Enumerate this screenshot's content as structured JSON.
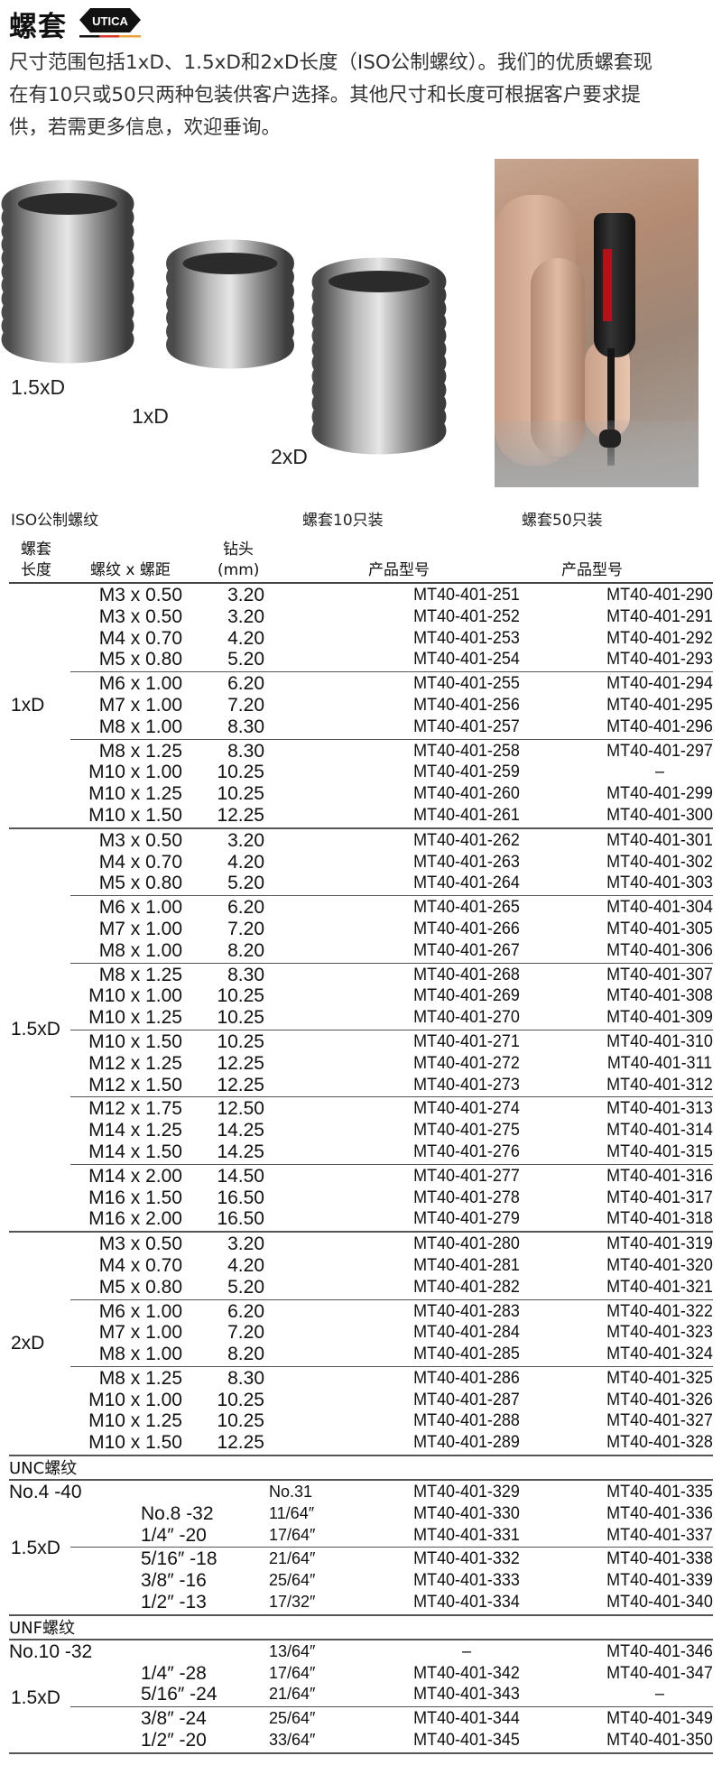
{
  "header": {
    "title": "螺套",
    "logo_text": "UTICA",
    "logo_colors": [
      "#111111",
      "#d9342b",
      "#e8a33a"
    ]
  },
  "intro": "尺寸范围包括1xD、1.5xD和2xD长度（ISO公制螺纹）。我们的优质螺套现在有10只或50只两种包装供客户选择。其他尺寸和长度可根据客户要求提供，若需更多信息，欢迎垂询。",
  "images": {
    "label_15xd": "1.5xD",
    "label_1xd": "1xD",
    "label_2xd": "2xD"
  },
  "captions": {
    "iso": "ISO公制螺纹",
    "pack10": "螺套10只装",
    "pack50": "螺套50只装"
  },
  "table": {
    "headers": {
      "length_l1": "螺套",
      "length_l2": "长度",
      "thread": "螺纹 x 螺距",
      "drill_l1": "钻头",
      "drill_l2": "(mm)",
      "part10": "产品型号",
      "part50": "产品型号"
    },
    "metric": [
      {
        "label": "1xD",
        "groups": [
          [
            [
              "M3 x 0.50",
              "3.20",
              "MT40-401-251",
              "MT40-401-290"
            ],
            [
              "M3 x 0.50",
              "3.20",
              "MT40-401-252",
              "MT40-401-291"
            ],
            [
              "M4 x 0.70",
              "4.20",
              "MT40-401-253",
              "MT40-401-292"
            ],
            [
              "M5 x 0.80",
              "5.20",
              "MT40-401-254",
              "MT40-401-293"
            ]
          ],
          [
            [
              "M6 x 1.00",
              "6.20",
              "MT40-401-255",
              "MT40-401-294"
            ],
            [
              "M7 x 1.00",
              "7.20",
              "MT40-401-256",
              "MT40-401-295"
            ],
            [
              "M8 x 1.00",
              "8.30",
              "MT40-401-257",
              "MT40-401-296"
            ]
          ],
          [
            [
              "M8 x 1.25",
              "8.30",
              "MT40-401-258",
              "MT40-401-297"
            ],
            [
              "M10 x 1.00",
              "10.25",
              "MT40-401-259",
              "–"
            ],
            [
              "M10 x 1.25",
              "10.25",
              "MT40-401-260",
              "MT40-401-299"
            ],
            [
              "M10 x 1.50",
              "12.25",
              "MT40-401-261",
              "MT40-401-300"
            ]
          ]
        ]
      },
      {
        "label": "1.5xD",
        "groups": [
          [
            [
              "M3 x 0.50",
              "3.20",
              "MT40-401-262",
              "MT40-401-301"
            ],
            [
              "M4 x 0.70",
              "4.20",
              "MT40-401-263",
              "MT40-401-302"
            ],
            [
              "M5 x 0.80",
              "5.20",
              "MT40-401-264",
              "MT40-401-303"
            ]
          ],
          [
            [
              "M6 x 1.00",
              "6.20",
              "MT40-401-265",
              "MT40-401-304"
            ],
            [
              "M7 x 1.00",
              "7.20",
              "MT40-401-266",
              "MT40-401-305"
            ],
            [
              "M8 x 1.00",
              "8.20",
              "MT40-401-267",
              "MT40-401-306"
            ]
          ],
          [
            [
              "M8 x 1.25",
              "8.30",
              "MT40-401-268",
              "MT40-401-307"
            ],
            [
              "M10 x 1.00",
              "10.25",
              "MT40-401-269",
              "MT40-401-308"
            ],
            [
              "M10 x 1.25",
              "10.25",
              "MT40-401-270",
              "MT40-401-309"
            ]
          ],
          [
            [
              "M10 x 1.50",
              "10.25",
              "MT40-401-271",
              "MT40-401-310"
            ],
            [
              "M12 x 1.25",
              "12.25",
              "MT40-401-272",
              "MT40-401-311"
            ],
            [
              "M12 x 1.50",
              "12.25",
              "MT40-401-273",
              "MT40-401-312"
            ]
          ],
          [
            [
              "M12 x 1.75",
              "12.50",
              "MT40-401-274",
              "MT40-401-313"
            ],
            [
              "M14 x 1.25",
              "14.25",
              "MT40-401-275",
              "MT40-401-314"
            ],
            [
              "M14 x 1.50",
              "14.25",
              "MT40-401-276",
              "MT40-401-315"
            ]
          ],
          [
            [
              "M14 x 2.00",
              "14.50",
              "MT40-401-277",
              "MT40-401-316"
            ],
            [
              "M16 x 1.50",
              "16.50",
              "MT40-401-278",
              "MT40-401-317"
            ],
            [
              "M16 x 2.00",
              "16.50",
              "MT40-401-279",
              "MT40-401-318"
            ]
          ]
        ]
      },
      {
        "label": "2xD",
        "groups": [
          [
            [
              "M3 x 0.50",
              "3.20",
              "MT40-401-280",
              "MT40-401-319"
            ],
            [
              "M4 x 0.70",
              "4.20",
              "MT40-401-281",
              "MT40-401-320"
            ],
            [
              "M5 x 0.80",
              "5.20",
              "MT40-401-282",
              "MT40-401-321"
            ]
          ],
          [
            [
              "M6 x 1.00",
              "6.20",
              "MT40-401-283",
              "MT40-401-322"
            ],
            [
              "M7 x 1.00",
              "7.20",
              "MT40-401-284",
              "MT40-401-323"
            ],
            [
              "M8 x 1.00",
              "8.20",
              "MT40-401-285",
              "MT40-401-324"
            ]
          ],
          [
            [
              "M8 x 1.25",
              "8.30",
              "MT40-401-286",
              "MT40-401-325"
            ],
            [
              "M10 x 1.00",
              "10.25",
              "MT40-401-287",
              "MT40-401-326"
            ],
            [
              "M10 x 1.25",
              "10.25",
              "MT40-401-288",
              "MT40-401-327"
            ],
            [
              "M10 x 1.50",
              "12.25",
              "MT40-401-289",
              "MT40-401-328"
            ]
          ]
        ]
      }
    ],
    "unc": {
      "title": "UNC螺纹",
      "label": "1.5xD",
      "groups": [
        [
          [
            "No.4 -40",
            "No.31",
            "MT40-401-329",
            "MT40-401-335"
          ],
          [
            "No.8 -32",
            "11/64″",
            "MT40-401-330",
            "MT40-401-336"
          ],
          [
            "1/4″ -20",
            "17/64″",
            "MT40-401-331",
            "MT40-401-337"
          ]
        ],
        [
          [
            "5/16″ -18",
            "21/64″",
            "MT40-401-332",
            "MT40-401-338"
          ],
          [
            "3/8″ -16",
            "25/64″",
            "MT40-401-333",
            "MT40-401-339"
          ],
          [
            "1/2″ -13",
            "17/32″",
            "MT40-401-334",
            "MT40-401-340"
          ]
        ]
      ]
    },
    "unf": {
      "title": "UNF螺纹",
      "label": "1.5xD",
      "groups": [
        [
          [
            "No.10 -32",
            "13/64″",
            "–",
            "MT40-401-346"
          ],
          [
            "1/4″ -28",
            "17/64″",
            "MT40-401-342",
            "MT40-401-347"
          ],
          [
            "5/16″ -24",
            "21/64″",
            "MT40-401-343",
            "–"
          ]
        ],
        [
          [
            "3/8″ -24",
            "25/64″",
            "MT40-401-344",
            "MT40-401-349"
          ],
          [
            "1/2″ -20",
            "33/64″",
            "MT40-401-345",
            "MT40-401-350"
          ]
        ]
      ]
    }
  }
}
